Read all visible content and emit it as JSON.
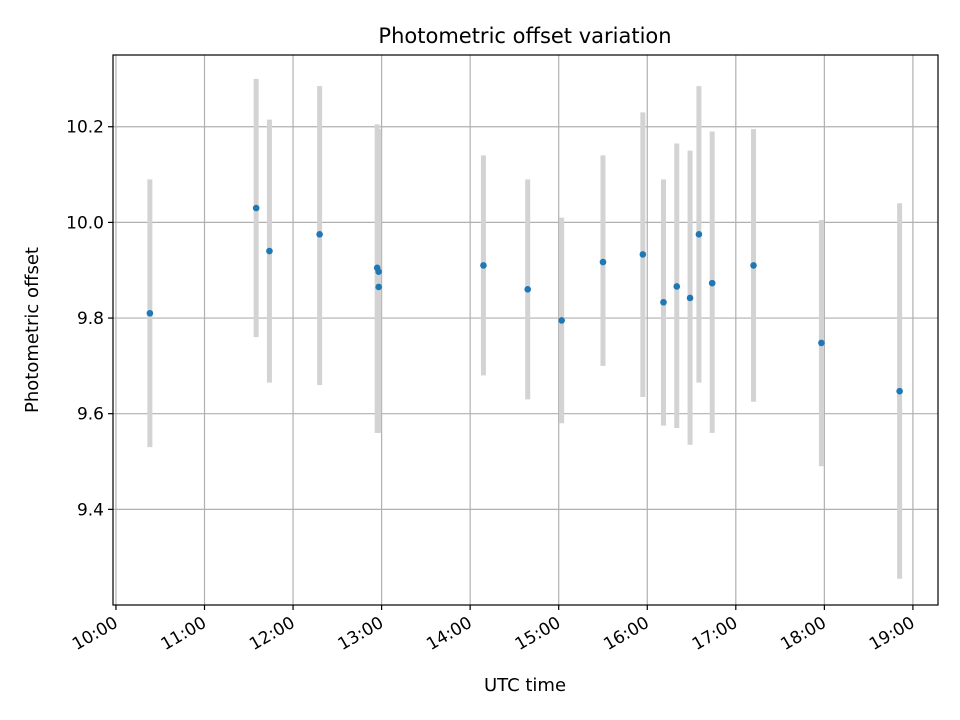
{
  "chart_data": {
    "type": "scatter",
    "title": "Photometric offset variation",
    "xlabel": "UTC time",
    "ylabel": "Photometric offset",
    "x_axis_kind": "time of day (UTC)",
    "xlim": [
      "09:58",
      "19:17"
    ],
    "ylim": [
      9.2,
      10.35
    ],
    "x_ticks": [
      "10:00",
      "11:00",
      "12:00",
      "13:00",
      "14:00",
      "15:00",
      "16:00",
      "17:00",
      "18:00",
      "19:00"
    ],
    "y_ticks": [
      "9.4",
      "9.6",
      "9.8",
      "10.0",
      "10.2"
    ],
    "grid": true,
    "legend": "none",
    "colors": {
      "marker": "#1f77b4",
      "errorbar": "#d3d3d3",
      "grid": "#b0b0b0"
    },
    "series": [
      {
        "points": [
          {
            "x": "10:23",
            "y": 9.81,
            "ylow": 9.53,
            "yhigh": 10.09
          },
          {
            "x": "11:35",
            "y": 10.03,
            "ylow": 9.76,
            "yhigh": 10.3
          },
          {
            "x": "11:44",
            "y": 9.94,
            "ylow": 9.665,
            "yhigh": 10.215
          },
          {
            "x": "12:18",
            "y": 9.975,
            "ylow": 9.66,
            "yhigh": 10.285
          },
          {
            "x": "12:57",
            "y": 9.905,
            "ylow": 9.56,
            "yhigh": 10.205
          },
          {
            "x": "12:58",
            "y": 9.865,
            "ylow": 9.56,
            "yhigh": 10.19
          },
          {
            "x": "12:58",
            "y": 9.897,
            "ylow": 9.6,
            "yhigh": 10.195
          },
          {
            "x": "14:09",
            "y": 9.91,
            "ylow": 9.68,
            "yhigh": 10.14
          },
          {
            "x": "14:39",
            "y": 9.86,
            "ylow": 9.63,
            "yhigh": 10.09
          },
          {
            "x": "15:02",
            "y": 9.795,
            "ylow": 9.58,
            "yhigh": 10.01
          },
          {
            "x": "15:30",
            "y": 9.917,
            "ylow": 9.7,
            "yhigh": 10.14
          },
          {
            "x": "15:57",
            "y": 9.933,
            "ylow": 9.635,
            "yhigh": 10.23
          },
          {
            "x": "16:11",
            "y": 9.833,
            "ylow": 9.575,
            "yhigh": 10.09
          },
          {
            "x": "16:20",
            "y": 9.866,
            "ylow": 9.57,
            "yhigh": 10.165
          },
          {
            "x": "16:29",
            "y": 9.842,
            "ylow": 9.535,
            "yhigh": 10.15
          },
          {
            "x": "16:35",
            "y": 9.975,
            "ylow": 9.665,
            "yhigh": 10.285
          },
          {
            "x": "16:44",
            "y": 9.873,
            "ylow": 9.56,
            "yhigh": 10.19
          },
          {
            "x": "17:12",
            "y": 9.91,
            "ylow": 9.625,
            "yhigh": 10.195
          },
          {
            "x": "17:58",
            "y": 9.748,
            "ylow": 9.49,
            "yhigh": 10.005
          },
          {
            "x": "18:51",
            "y": 9.647,
            "ylow": 9.255,
            "yhigh": 10.04
          }
        ]
      }
    ]
  }
}
